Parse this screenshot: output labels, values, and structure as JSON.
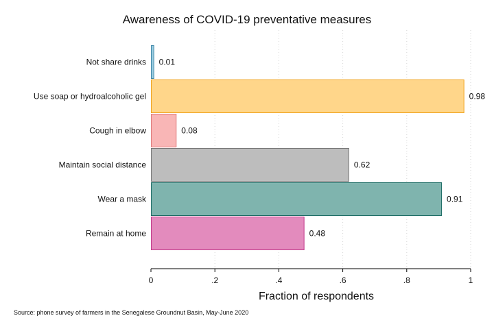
{
  "chart_data": {
    "type": "bar",
    "orientation": "horizontal",
    "title": "Awareness of COVID-19 preventative measures",
    "xlabel": "Fraction of respondents",
    "ylabel": "",
    "note": "Source: phone survey of farmers in the Senegalese Groundnut Basin, May-June 2020",
    "xlim": [
      0,
      1
    ],
    "xticks": [
      {
        "value": 0,
        "label": "0"
      },
      {
        "value": 0.2,
        "label": ".2"
      },
      {
        "value": 0.4,
        "label": ".4"
      },
      {
        "value": 0.6,
        "label": ".6"
      },
      {
        "value": 0.8,
        "label": ".8"
      },
      {
        "value": 1,
        "label": "1"
      }
    ],
    "grid": "vertical-dotted",
    "categories": [
      "Not share drinks",
      "Use soap or hydroalcoholic gel",
      "Cough in elbow",
      "Maintain social distance",
      "Wear a mask",
      "Remain at home"
    ],
    "values": [
      0.01,
      0.98,
      0.08,
      0.62,
      0.91,
      0.48
    ],
    "value_labels": [
      "0.01",
      "0.98",
      "0.08",
      "0.62",
      "0.91",
      "0.48"
    ],
    "colors": [
      {
        "fill": "#9ccde0",
        "stroke": "#3f87a8"
      },
      {
        "fill": "#ffd68a",
        "stroke": "#f0a31c"
      },
      {
        "fill": "#f9b6b6",
        "stroke": "#e07a7a"
      },
      {
        "fill": "#bdbdbd",
        "stroke": "#777777"
      },
      {
        "fill": "#7fb4ae",
        "stroke": "#1e6d66"
      },
      {
        "fill": "#e38bbd",
        "stroke": "#c2388a"
      }
    ]
  }
}
